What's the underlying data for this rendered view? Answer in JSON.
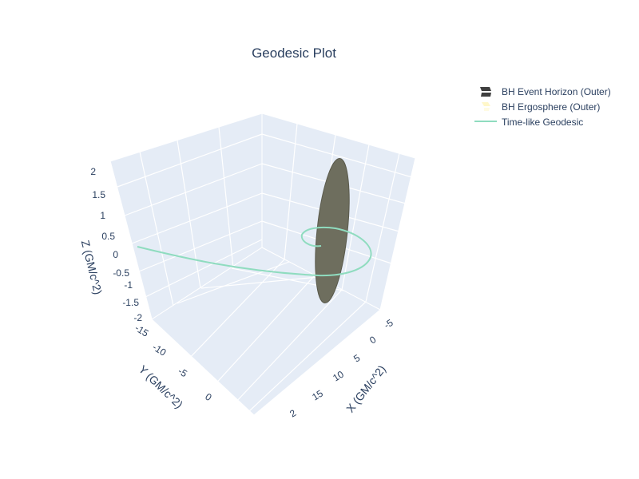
{
  "chart_data": {
    "type": "scatter3d",
    "title": "Geodesic Plot",
    "axes": {
      "x": {
        "label": "X (GM/c^2)",
        "ticks": [
          "-5",
          "0",
          "5",
          "10",
          "15",
          "2"
        ]
      },
      "y": {
        "label": "Y (GM/c^2)",
        "ticks": [
          "-15",
          "-10",
          "-5",
          "0"
        ]
      },
      "z": {
        "label": "Z (GM/c^2)",
        "ticks": [
          "2",
          "1.5",
          "1",
          "0.5",
          "0",
          "-0.5",
          "-1",
          "-1.5",
          "-2"
        ]
      }
    },
    "grid": true,
    "legend_position": "top-right",
    "series": [
      {
        "name": "BH Event Horizon (Outer)",
        "kind": "surface",
        "color": "#6b6b5b"
      },
      {
        "name": "BH Ergosphere (Outer)",
        "kind": "surface",
        "color": "#fff7c9"
      },
      {
        "name": "Time-like Geodesic",
        "kind": "line",
        "color": "#8fdcbf"
      }
    ]
  }
}
